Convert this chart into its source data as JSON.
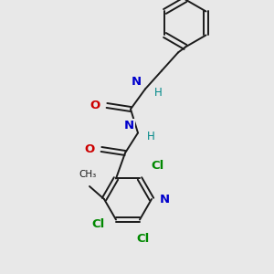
{
  "bg_color": "#e8e8e8",
  "bond_color": "#1a1a1a",
  "N_color": "#0000cc",
  "O_color": "#cc0000",
  "Cl_color": "#008800",
  "H_color": "#008888",
  "figsize": [
    3.0,
    3.0
  ],
  "dpi": 100,
  "xlim": [
    0,
    300
  ],
  "ylim": [
    0,
    300
  ]
}
